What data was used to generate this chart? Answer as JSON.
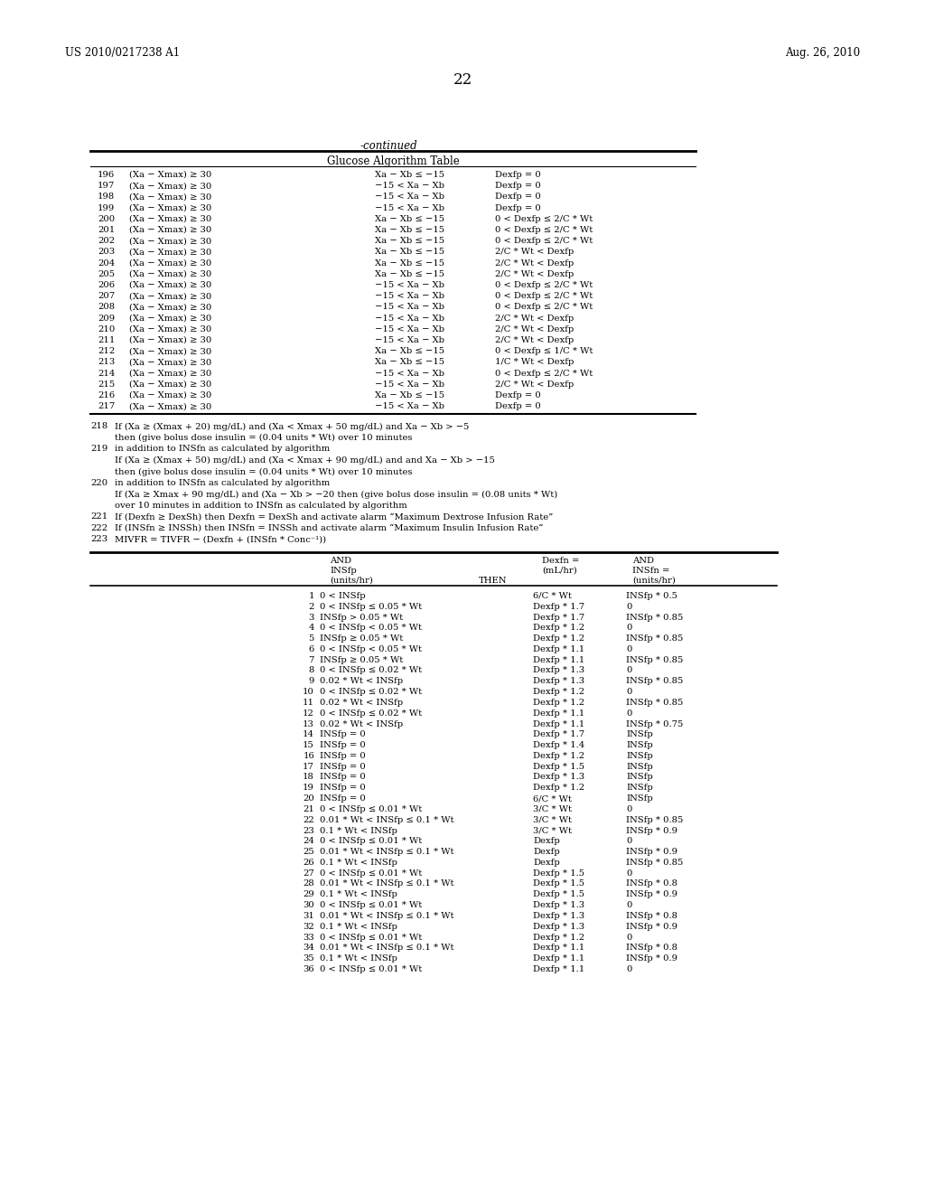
{
  "header_left": "US 2010/0217238 A1",
  "header_right": "Aug. 26, 2010",
  "page_number": "22",
  "continued_label": "-continued",
  "table1_title": "Glucose Algorithm Table",
  "table1_rows": [
    [
      "196",
      "(Xa − Xmax) ≥ 30",
      "Xa − Xb ≤ −15",
      "Dexfp = 0"
    ],
    [
      "197",
      "(Xa − Xmax) ≥ 30",
      "−15 < Xa − Xb",
      "Dexfp = 0"
    ],
    [
      "198",
      "(Xa − Xmax) ≥ 30",
      "−15 < Xa − Xb",
      "Dexfp = 0"
    ],
    [
      "199",
      "(Xa − Xmax) ≥ 30",
      "−15 < Xa − Xb",
      "Dexfp = 0"
    ],
    [
      "200",
      "(Xa − Xmax) ≥ 30",
      "Xa − Xb ≤ −15",
      "0 < Dexfp ≤ 2/C * Wt"
    ],
    [
      "201",
      "(Xa − Xmax) ≥ 30",
      "Xa − Xb ≤ −15",
      "0 < Dexfp ≤ 2/C * Wt"
    ],
    [
      "202",
      "(Xa − Xmax) ≥ 30",
      "Xa − Xb ≤ −15",
      "0 < Dexfp ≤ 2/C * Wt"
    ],
    [
      "203",
      "(Xa − Xmax) ≥ 30",
      "Xa − Xb ≤ −15",
      "2/C * Wt < Dexfp"
    ],
    [
      "204",
      "(Xa − Xmax) ≥ 30",
      "Xa − Xb ≤ −15",
      "2/C * Wt < Dexfp"
    ],
    [
      "205",
      "(Xa − Xmax) ≥ 30",
      "Xa − Xb ≤ −15",
      "2/C * Wt < Dexfp"
    ],
    [
      "206",
      "(Xa − Xmax) ≥ 30",
      "−15 < Xa − Xb",
      "0 < Dexfp ≤ 2/C * Wt"
    ],
    [
      "207",
      "(Xa − Xmax) ≥ 30",
      "−15 < Xa − Xb",
      "0 < Dexfp ≤ 2/C * Wt"
    ],
    [
      "208",
      "(Xa − Xmax) ≥ 30",
      "−15 < Xa − Xb",
      "0 < Dexfp ≤ 2/C * Wt"
    ],
    [
      "209",
      "(Xa − Xmax) ≥ 30",
      "−15 < Xa − Xb",
      "2/C * Wt < Dexfp"
    ],
    [
      "210",
      "(Xa − Xmax) ≥ 30",
      "−15 < Xa − Xb",
      "2/C * Wt < Dexfp"
    ],
    [
      "211",
      "(Xa − Xmax) ≥ 30",
      "−15 < Xa − Xb",
      "2/C * Wt < Dexfp"
    ],
    [
      "212",
      "(Xa − Xmax) ≥ 30",
      "Xa − Xb ≤ −15",
      "0 < Dexfp ≤ 1/C * Wt"
    ],
    [
      "213",
      "(Xa − Xmax) ≥ 30",
      "Xa − Xb ≤ −15",
      "1/C * Wt < Dexfp"
    ],
    [
      "214",
      "(Xa − Xmax) ≥ 30",
      "−15 < Xa − Xb",
      "0 < Dexfp ≤ 2/C * Wt"
    ],
    [
      "215",
      "(Xa − Xmax) ≥ 30",
      "−15 < Xa − Xb",
      "2/C * Wt < Dexfp"
    ],
    [
      "216",
      "(Xa − Xmax) ≥ 30",
      "Xa − Xb ≤ −15",
      "Dexfp = 0"
    ],
    [
      "217",
      "(Xa − Xmax) ≥ 30",
      "−15 < Xa − Xb",
      "Dexfp = 0"
    ]
  ],
  "notes": [
    [
      "218",
      "If (Xa ≥ (Xmax + 20) mg/dL) and (Xa < Xmax + 50 mg/dL) and Xa − Xb > −5"
    ],
    [
      "",
      "then (give bolus dose insulin = (0.04 units * Wt) over 10 minutes"
    ],
    [
      "219",
      "in addition to INSfn as calculated by algorithm"
    ],
    [
      "",
      "If (Xa ≥ (Xmax + 50) mg/dL) and (Xa < Xmax + 90 mg/dL) and and Xa − Xb > −15"
    ],
    [
      "",
      "then (give bolus dose insulin = (0.04 units * Wt) over 10 minutes"
    ],
    [
      "220",
      "in addition to INSfn as calculated by algorithm"
    ],
    [
      "",
      "If (Xa ≥ Xmax + 90 mg/dL) and (Xa − Xb > −20 then (give bolus dose insulin = (0.08 units * Wt)"
    ],
    [
      "",
      "over 10 minutes in addition to INSfn as calculated by algorithm"
    ],
    [
      "221",
      "If (Dexfn ≥ DexSh) then Dexfn = DexSh and activate alarm “Maximum Dextrose Infusion Rate”"
    ],
    [
      "222",
      "If (INSfn ≥ INSSh) then INSfn = INSSh and activate alarm “Maximum Insulin Infusion Rate”"
    ],
    [
      "223",
      "MIVFR = TIVFR − (Dexfn + (INSfn * Conc⁻¹))"
    ]
  ],
  "table2_rows": [
    [
      "1",
      "0 < INSfp",
      "6/C * Wt",
      "INSfp * 0.5"
    ],
    [
      "2",
      "0 < INSfp ≤ 0.05 * Wt",
      "Dexfp * 1.7",
      "0"
    ],
    [
      "3",
      "INSfp > 0.05 * Wt",
      "Dexfp * 1.7",
      "INSfp * 0.85"
    ],
    [
      "4",
      "0 < INSfp < 0.05 * Wt",
      "Dexfp * 1.2",
      "0"
    ],
    [
      "5",
      "INSfp ≥ 0.05 * Wt",
      "Dexfp * 1.2",
      "INSfp * 0.85"
    ],
    [
      "6",
      "0 < INSfp < 0.05 * Wt",
      "Dexfp * 1.1",
      "0"
    ],
    [
      "7",
      "INSfp ≥ 0.05 * Wt",
      "Dexfp * 1.1",
      "INSfp * 0.85"
    ],
    [
      "8",
      "0 < INSfp ≤ 0.02 * Wt",
      "Dexfp * 1.3",
      "0"
    ],
    [
      "9",
      "0.02 * Wt < INSfp",
      "Dexfp * 1.3",
      "INSfp * 0.85"
    ],
    [
      "10",
      "0 < INSfp ≤ 0.02 * Wt",
      "Dexfp * 1.2",
      "0"
    ],
    [
      "11",
      "0.02 * Wt < INSfp",
      "Dexfp * 1.2",
      "INSfp * 0.85"
    ],
    [
      "12",
      "0 < INSfp ≤ 0.02 * Wt",
      "Dexfp * 1.1",
      "0"
    ],
    [
      "13",
      "0.02 * Wt < INSfp",
      "Dexfp * 1.1",
      "INSfp * 0.75"
    ],
    [
      "14",
      "INSfp = 0",
      "Dexfp * 1.7",
      "INSfp"
    ],
    [
      "15",
      "INSfp = 0",
      "Dexfp * 1.4",
      "INSfp"
    ],
    [
      "16",
      "INSfp = 0",
      "Dexfp * 1.2",
      "INSfp"
    ],
    [
      "17",
      "INSfp = 0",
      "Dexfp * 1.5",
      "INSfp"
    ],
    [
      "18",
      "INSfp = 0",
      "Dexfp * 1.3",
      "INSfp"
    ],
    [
      "19",
      "INSfp = 0",
      "Dexfp * 1.2",
      "INSfp"
    ],
    [
      "20",
      "INSfp = 0",
      "6/C * Wt",
      "INSfp"
    ],
    [
      "21",
      "0 < INSfp ≤ 0.01 * Wt",
      "3/C * Wt",
      "0"
    ],
    [
      "22",
      "0.01 * Wt < INSfp ≤ 0.1 * Wt",
      "3/C * Wt",
      "INSfp * 0.85"
    ],
    [
      "23",
      "0.1 * Wt < INSfp",
      "3/C * Wt",
      "INSfp * 0.9"
    ],
    [
      "24",
      "0 < INSfp ≤ 0.01 * Wt",
      "Dexfp",
      "0"
    ],
    [
      "25",
      "0.01 * Wt < INSfp ≤ 0.1 * Wt",
      "Dexfp",
      "INSfp * 0.9"
    ],
    [
      "26",
      "0.1 * Wt < INSfp",
      "Dexfp",
      "INSfp * 0.85"
    ],
    [
      "27",
      "0 < INSfp ≤ 0.01 * Wt",
      "Dexfp * 1.5",
      "0"
    ],
    [
      "28",
      "0.01 * Wt < INSfp ≤ 0.1 * Wt",
      "Dexfp * 1.5",
      "INSfp * 0.8"
    ],
    [
      "29",
      "0.1 * Wt < INSfp",
      "Dexfp * 1.5",
      "INSfp * 0.9"
    ],
    [
      "30",
      "0 < INSfp ≤ 0.01 * Wt",
      "Dexfp * 1.3",
      "0"
    ],
    [
      "31",
      "0.01 * Wt < INSfp ≤ 0.1 * Wt",
      "Dexfp * 1.3",
      "INSfp * 0.8"
    ],
    [
      "32",
      "0.1 * Wt < INSfp",
      "Dexfp * 1.3",
      "INSfp * 0.9"
    ],
    [
      "33",
      "0 < INSfp ≤ 0.01 * Wt",
      "Dexfp * 1.2",
      "0"
    ],
    [
      "34",
      "0.01 * Wt < INSfp ≤ 0.1 * Wt",
      "Dexfp * 1.1",
      "INSfp * 0.8"
    ],
    [
      "35",
      "0.1 * Wt < INSfp",
      "Dexfp * 1.1",
      "INSfp * 0.9"
    ],
    [
      "36",
      "0 < INSfp ≤ 0.01 * Wt",
      "Dexfp * 1.1",
      "0"
    ]
  ],
  "bg_color": "#ffffff",
  "text_color": "#000000",
  "font_size": 7.2
}
